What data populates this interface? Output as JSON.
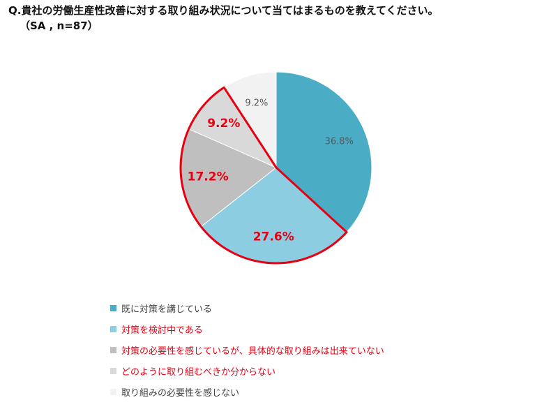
{
  "header": {
    "title": "Q.貴社の労働生産性改善に対する取り組み状況について当てはまるものを教えてください。",
    "subtitle": "（SA , n=87）"
  },
  "chart_data": {
    "type": "pie",
    "series": [
      {
        "label": "既に対策を講じている",
        "value": 36.8,
        "color": "#4bacc6",
        "label_text": "36.8%",
        "highlight": false
      },
      {
        "label": "対策を検討中である",
        "value": 27.6,
        "color": "#8dcde2",
        "label_text": "27.6%",
        "highlight": true
      },
      {
        "label": "対策の必要性を感じているが、具体的な取り組みは出来ていない",
        "value": 17.2,
        "color": "#bfbfbf",
        "label_text": "17.2%",
        "highlight": true
      },
      {
        "label": "どのように取り組むべきか分からない",
        "value": 9.2,
        "color": "#d9d9d9",
        "label_text": "9.2%",
        "highlight": true
      },
      {
        "label": "取り組みの必要性を感じない",
        "value": 9.2,
        "color": "#f2f2f2",
        "label_text": "9.2%",
        "highlight": false
      }
    ],
    "highlight_color": "#e60012"
  }
}
